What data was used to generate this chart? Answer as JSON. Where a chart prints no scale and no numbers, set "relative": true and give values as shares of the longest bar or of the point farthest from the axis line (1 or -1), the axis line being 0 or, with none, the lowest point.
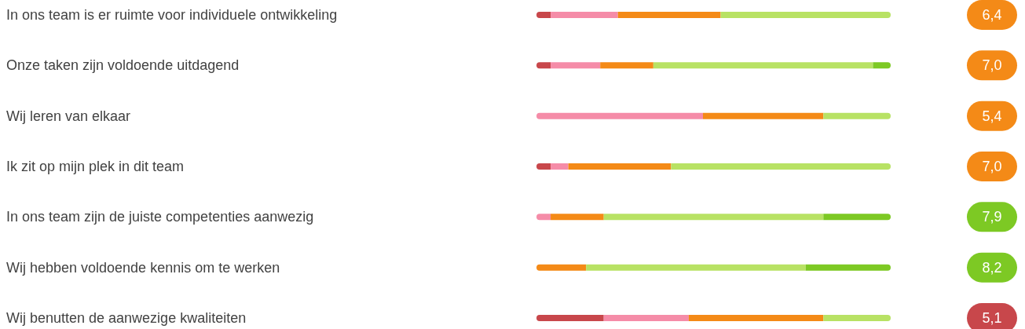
{
  "chart_data": [
    {
      "type": "bar",
      "orientation": "horizontal",
      "stacked": true,
      "relative": true,
      "categories": [
        "In ons team is er ruimte voor individuele ontwikkeling",
        "Onze taken zijn voldoende uitdagend",
        "Wij leren van elkaar",
        "Ik zit op mijn plek in dit team",
        "In ons team zijn de juiste competenties aanwezig",
        "Wij hebben voldoende kennis om te werken",
        "Wij benutten de aanwezige kwaliteiten"
      ],
      "series": [
        {
          "color": "#c8474b",
          "values": [
            0.04,
            0.04,
            0,
            0.04,
            0,
            0,
            0.19
          ]
        },
        {
          "color": "#f58ca8",
          "values": [
            0.19,
            0.14,
            0.47,
            0.05,
            0.04,
            0,
            0.24
          ]
        },
        {
          "color": "#f48a17",
          "values": [
            0.29,
            0.15,
            0.34,
            0.29,
            0.15,
            0.14,
            0.38
          ]
        },
        {
          "color": "#b8e264",
          "values": [
            0.48,
            0.62,
            0.19,
            0.62,
            0.62,
            0.62,
            0.19
          ]
        },
        {
          "color": "#7dc924",
          "values": [
            0,
            0.05,
            0,
            0,
            0.19,
            0.24,
            0
          ]
        }
      ]
    },
    {
      "type": "other",
      "categories": [
        null,
        null,
        null,
        null,
        null,
        null,
        null
      ],
      "value_labels": [
        "6,4",
        "7,0",
        "5,4",
        "7,0",
        "7,9",
        "8,2",
        "5,1"
      ],
      "colors": [
        "#f48a17",
        "#f48a17",
        "#f48a17",
        "#f48a17",
        "#7dc924",
        "#7dc924",
        "#c8474b"
      ]
    }
  ]
}
